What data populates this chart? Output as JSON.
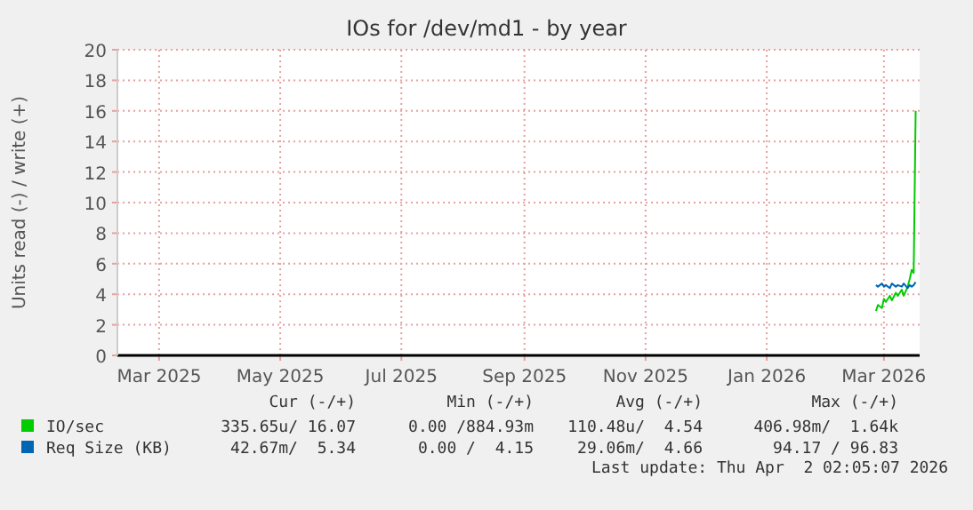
{
  "chart_data": {
    "type": "line",
    "title": "IOs for /dev/md1 - by year",
    "ylabel": "Units read (-) / write (+)",
    "xlim": [
      "2025-02-08",
      "2026-03-19"
    ],
    "ylim": [
      0,
      20
    ],
    "yticks": [
      0,
      2,
      4,
      6,
      8,
      10,
      12,
      14,
      16,
      18,
      20
    ],
    "xticks": [
      {
        "value": "2025-03-01",
        "label": "Mar 2025"
      },
      {
        "value": "2025-05-01",
        "label": "May 2025"
      },
      {
        "value": "2025-07-01",
        "label": "Jul 2025"
      },
      {
        "value": "2025-09-01",
        "label": "Sep 2025"
      },
      {
        "value": "2025-11-01",
        "label": "Nov 2025"
      },
      {
        "value": "2026-01-01",
        "label": "Jan 2026"
      },
      {
        "value": "2026-03-01",
        "label": "Mar 2026"
      }
    ],
    "x": [
      "2026-02-25",
      "2026-02-26",
      "2026-02-28",
      "2026-03-01",
      "2026-03-02",
      "2026-03-04",
      "2026-03-05",
      "2026-03-07",
      "2026-03-08",
      "2026-03-10",
      "2026-03-11",
      "2026-03-13",
      "2026-03-14",
      "2026-03-15",
      "2026-03-16",
      "2026-03-17"
    ],
    "series": [
      {
        "name": "IO/sec",
        "color": "#00cc00",
        "values": [
          2.9,
          3.3,
          3.1,
          3.7,
          3.5,
          3.9,
          3.6,
          4.1,
          3.9,
          4.3,
          3.9,
          4.5,
          5.0,
          5.6,
          5.4,
          16.0
        ]
      },
      {
        "name": "Req Size (KB)",
        "color": "#0066b3",
        "values": [
          4.6,
          4.5,
          4.7,
          4.5,
          4.6,
          4.4,
          4.7,
          4.5,
          4.6,
          4.5,
          4.7,
          4.4,
          4.6,
          4.5,
          4.6,
          4.8
        ]
      }
    ],
    "grid": true,
    "legend": "bottom",
    "marker": "none",
    "line_style": "solid",
    "annotations": [
      "Cur (-/+)",
      "Min (-/+)",
      "Avg (-/+)",
      "Max (-/+)",
      "335.65u/ 16.07",
      "0.00 /884.93m",
      "110.48u/  4.54",
      "406.98m/  1.64k",
      "42.67m/  5.34",
      "0.00 /  4.15",
      "29.06m/  4.66",
      "94.17 / 96.83",
      "Last update: Thu Apr  2 02:05:07 2026"
    ]
  }
}
